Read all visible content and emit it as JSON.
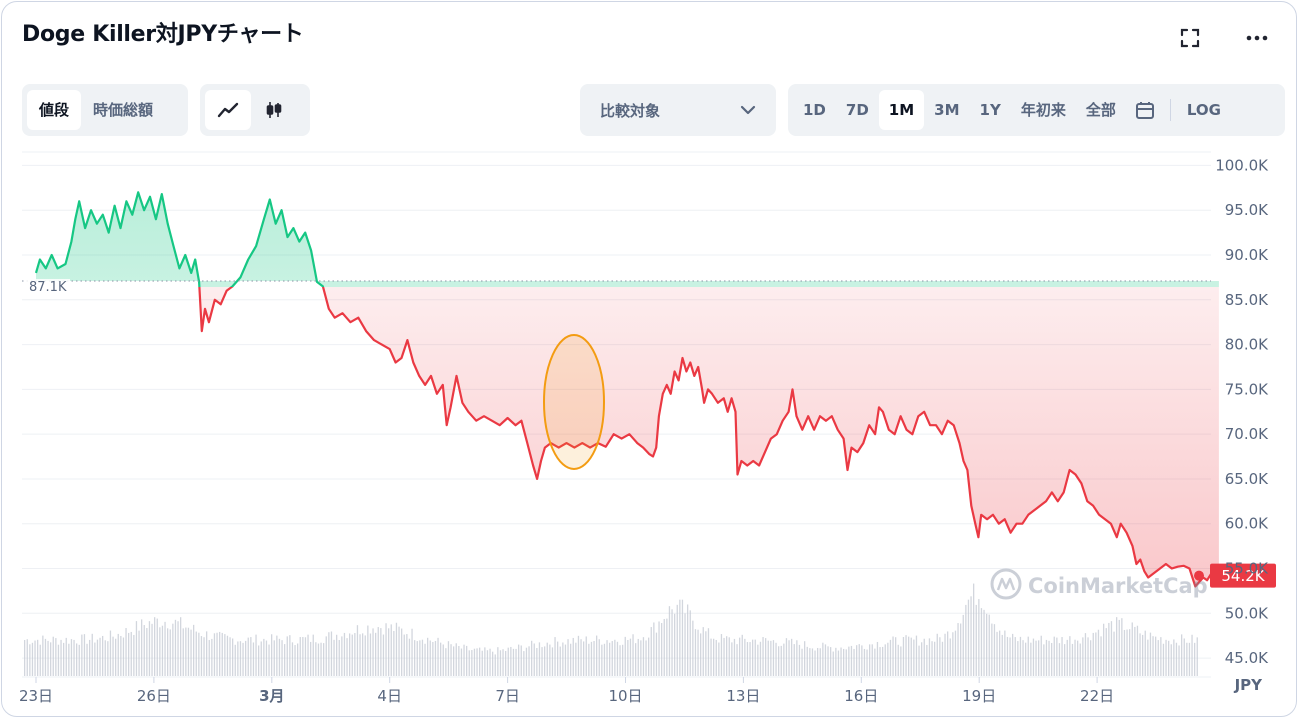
{
  "header": {
    "title": "Doge Killer対JPYチャート"
  },
  "toolbar": {
    "type_tabs": [
      "値段",
      "時価総額"
    ],
    "compare_label": "比較対象",
    "ranges": [
      "1D",
      "7D",
      "1M",
      "3M",
      "1Y",
      "年初来",
      "全部"
    ],
    "log_label": "LOG"
  },
  "colors": {
    "up": "#16c784",
    "down": "#ea3943",
    "marker_ellipse": "#f39c12",
    "text_muted": "#58667e"
  },
  "watermark": "CoinMarketCap",
  "chart_data": {
    "type": "line",
    "title": "Doge Killer対JPYチャート",
    "currency_label": "JPY",
    "x_tick_labels": [
      "23日",
      "26日",
      "3月",
      "4日",
      "7日",
      "10日",
      "13日",
      "16日",
      "19日",
      "22日"
    ],
    "y_tick_labels": [
      "100.0K",
      "95.0K",
      "90.0K",
      "85.0K",
      "80.0K",
      "75.0K",
      "70.0K",
      "65.0K",
      "60.0K",
      "55.0K",
      "50.0K",
      "45.0K"
    ],
    "ylim": [
      43000,
      101500
    ],
    "reference_label": "87.1K",
    "reference_value": 87100,
    "current_label": "54.2K",
    "current_value": 54200,
    "x_range_days": [
      0,
      30.1
    ],
    "points": [
      [
        0.0,
        88000
      ],
      [
        0.1,
        89500
      ],
      [
        0.25,
        88500
      ],
      [
        0.4,
        90000
      ],
      [
        0.55,
        88500
      ],
      [
        0.75,
        89000
      ],
      [
        0.9,
        91500
      ],
      [
        1.0,
        94000
      ],
      [
        1.1,
        96000
      ],
      [
        1.25,
        93000
      ],
      [
        1.4,
        95000
      ],
      [
        1.55,
        93500
      ],
      [
        1.7,
        94500
      ],
      [
        1.85,
        92500
      ],
      [
        2.0,
        95500
      ],
      [
        2.15,
        93000
      ],
      [
        2.3,
        96000
      ],
      [
        2.45,
        94500
      ],
      [
        2.6,
        97000
      ],
      [
        2.75,
        95000
      ],
      [
        2.9,
        96500
      ],
      [
        3.05,
        94000
      ],
      [
        3.2,
        96800
      ],
      [
        3.35,
        93500
      ],
      [
        3.5,
        91000
      ],
      [
        3.65,
        88500
      ],
      [
        3.8,
        90000
      ],
      [
        3.95,
        88000
      ],
      [
        4.05,
        89500
      ],
      [
        4.15,
        87000
      ],
      [
        4.22,
        81500
      ],
      [
        4.3,
        84000
      ],
      [
        4.4,
        82500
      ],
      [
        4.55,
        85000
      ],
      [
        4.7,
        84500
      ],
      [
        4.85,
        86000
      ],
      [
        5.0,
        86500
      ],
      [
        5.2,
        87500
      ],
      [
        5.4,
        89500
      ],
      [
        5.6,
        91000
      ],
      [
        5.8,
        94000
      ],
      [
        5.95,
        96200
      ],
      [
        6.1,
        93500
      ],
      [
        6.25,
        95000
      ],
      [
        6.4,
        92000
      ],
      [
        6.55,
        93000
      ],
      [
        6.7,
        91500
      ],
      [
        6.85,
        92500
      ],
      [
        7.0,
        90500
      ],
      [
        7.15,
        87000
      ],
      [
        7.3,
        86500
      ],
      [
        7.45,
        84000
      ],
      [
        7.6,
        83000
      ],
      [
        7.8,
        83500
      ],
      [
        8.0,
        82500
      ],
      [
        8.2,
        83000
      ],
      [
        8.4,
        81500
      ],
      [
        8.6,
        80500
      ],
      [
        8.8,
        80000
      ],
      [
        9.0,
        79500
      ],
      [
        9.15,
        78000
      ],
      [
        9.3,
        78500
      ],
      [
        9.45,
        80500
      ],
      [
        9.6,
        78000
      ],
      [
        9.75,
        76500
      ],
      [
        9.9,
        75500
      ],
      [
        10.05,
        76500
      ],
      [
        10.2,
        74500
      ],
      [
        10.35,
        75500
      ],
      [
        10.45,
        71000
      ],
      [
        10.55,
        73000
      ],
      [
        10.7,
        76500
      ],
      [
        10.85,
        73500
      ],
      [
        11.0,
        72500
      ],
      [
        11.2,
        71500
      ],
      [
        11.4,
        72000
      ],
      [
        11.6,
        71500
      ],
      [
        11.8,
        71000
      ],
      [
        12.0,
        71800
      ],
      [
        12.2,
        71000
      ],
      [
        12.35,
        71500
      ],
      [
        12.5,
        69000
      ],
      [
        12.65,
        66500
      ],
      [
        12.75,
        65000
      ],
      [
        12.85,
        67000
      ],
      [
        12.95,
        68500
      ],
      [
        13.1,
        69000
      ],
      [
        13.3,
        68500
      ],
      [
        13.5,
        69000
      ],
      [
        13.7,
        68500
      ],
      [
        13.9,
        69000
      ],
      [
        14.1,
        68500
      ],
      [
        14.3,
        69000
      ],
      [
        14.5,
        68600
      ],
      [
        14.7,
        70000
      ],
      [
        14.9,
        69500
      ],
      [
        15.1,
        70000
      ],
      [
        15.3,
        69000
      ],
      [
        15.45,
        68500
      ],
      [
        15.6,
        67800
      ],
      [
        15.7,
        67500
      ],
      [
        15.78,
        68500
      ],
      [
        15.85,
        72000
      ],
      [
        15.95,
        74500
      ],
      [
        16.05,
        75500
      ],
      [
        16.15,
        74500
      ],
      [
        16.25,
        77000
      ],
      [
        16.35,
        76000
      ],
      [
        16.45,
        78500
      ],
      [
        16.55,
        77000
      ],
      [
        16.65,
        78000
      ],
      [
        16.75,
        76500
      ],
      [
        16.85,
        77500
      ],
      [
        16.95,
        75000
      ],
      [
        17.0,
        73500
      ],
      [
        17.1,
        75000
      ],
      [
        17.2,
        74500
      ],
      [
        17.35,
        73500
      ],
      [
        17.5,
        74000
      ],
      [
        17.6,
        72500
      ],
      [
        17.7,
        74000
      ],
      [
        17.8,
        72500
      ],
      [
        17.85,
        65500
      ],
      [
        17.95,
        67000
      ],
      [
        18.1,
        66500
      ],
      [
        18.25,
        67000
      ],
      [
        18.4,
        66500
      ],
      [
        18.55,
        68000
      ],
      [
        18.7,
        69500
      ],
      [
        18.85,
        70000
      ],
      [
        19.0,
        71500
      ],
      [
        19.15,
        72500
      ],
      [
        19.25,
        75000
      ],
      [
        19.35,
        72000
      ],
      [
        19.5,
        70500
      ],
      [
        19.65,
        72000
      ],
      [
        19.8,
        70500
      ],
      [
        19.95,
        72000
      ],
      [
        20.1,
        71500
      ],
      [
        20.25,
        72000
      ],
      [
        20.4,
        70500
      ],
      [
        20.55,
        69500
      ],
      [
        20.65,
        66000
      ],
      [
        20.75,
        68500
      ],
      [
        20.9,
        68000
      ],
      [
        21.05,
        69000
      ],
      [
        21.2,
        71000
      ],
      [
        21.35,
        70000
      ],
      [
        21.45,
        73000
      ],
      [
        21.55,
        72500
      ],
      [
        21.7,
        70500
      ],
      [
        21.85,
        70000
      ],
      [
        22.0,
        72000
      ],
      [
        22.15,
        70500
      ],
      [
        22.3,
        70000
      ],
      [
        22.45,
        72000
      ],
      [
        22.6,
        72500
      ],
      [
        22.75,
        71000
      ],
      [
        22.9,
        71000
      ],
      [
        23.05,
        70000
      ],
      [
        23.2,
        71500
      ],
      [
        23.35,
        71000
      ],
      [
        23.5,
        69000
      ],
      [
        23.6,
        67000
      ],
      [
        23.7,
        66000
      ],
      [
        23.8,
        62000
      ],
      [
        23.9,
        60000
      ],
      [
        23.98,
        58500
      ],
      [
        24.05,
        61000
      ],
      [
        24.2,
        60500
      ],
      [
        24.35,
        61000
      ],
      [
        24.5,
        60000
      ],
      [
        24.65,
        60500
      ],
      [
        24.8,
        59000
      ],
      [
        24.95,
        60000
      ],
      [
        25.1,
        60000
      ],
      [
        25.25,
        61000
      ],
      [
        25.4,
        61500
      ],
      [
        25.55,
        62000
      ],
      [
        25.7,
        62500
      ],
      [
        25.85,
        63500
      ],
      [
        26.0,
        62500
      ],
      [
        26.15,
        63500
      ],
      [
        26.3,
        66000
      ],
      [
        26.45,
        65500
      ],
      [
        26.6,
        64500
      ],
      [
        26.75,
        62500
      ],
      [
        26.9,
        62000
      ],
      [
        27.05,
        61000
      ],
      [
        27.2,
        60500
      ],
      [
        27.35,
        60000
      ],
      [
        27.5,
        58500
      ],
      [
        27.6,
        60000
      ],
      [
        27.75,
        59000
      ],
      [
        27.9,
        57500
      ],
      [
        28.0,
        55500
      ],
      [
        28.1,
        56000
      ],
      [
        28.2,
        54700
      ],
      [
        28.3,
        54000
      ],
      [
        28.45,
        54500
      ],
      [
        28.6,
        55000
      ],
      [
        28.75,
        55500
      ],
      [
        28.9,
        55000
      ],
      [
        29.05,
        55200
      ],
      [
        29.2,
        55300
      ],
      [
        29.35,
        55000
      ],
      [
        29.5,
        53000
      ],
      [
        29.6,
        53500
      ],
      [
        29.7,
        54000
      ],
      [
        29.8,
        53700
      ],
      [
        29.9,
        54400
      ],
      [
        30.0,
        54200
      ],
      [
        30.1,
        54200
      ]
    ],
    "volume_series_shown": true,
    "annotation": "ellipse highlighting the spike between 7日 and 10日"
  }
}
